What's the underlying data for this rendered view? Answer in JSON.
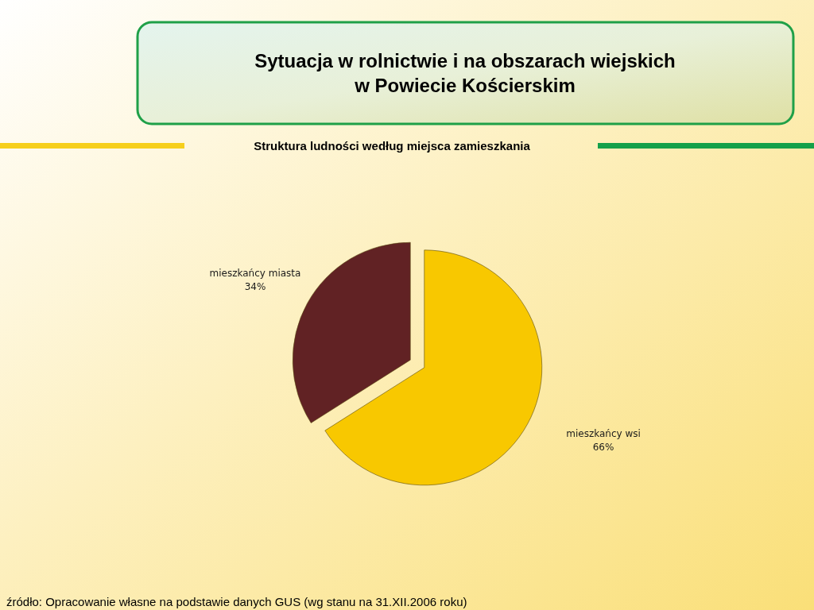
{
  "chart_data": {
    "type": "pie",
    "title": "Sytuacja w rolnictwie i na obszarach wiejskich\nw Powiecie Kościerskim",
    "subtitle": "Struktura ludności według miejsca zamieszkania",
    "categories": [
      "mieszkańcy miasta",
      "mieszkańcy wsi"
    ],
    "values": [
      34,
      66
    ],
    "colors": [
      "#612224",
      "#f8c800"
    ],
    "value_labels": [
      "34%",
      "66%"
    ],
    "annotations": [
      "źródło: Opracowanie własne na podstawie danych GUS (wg stanu na 31.XII.2006 roku)"
    ]
  }
}
